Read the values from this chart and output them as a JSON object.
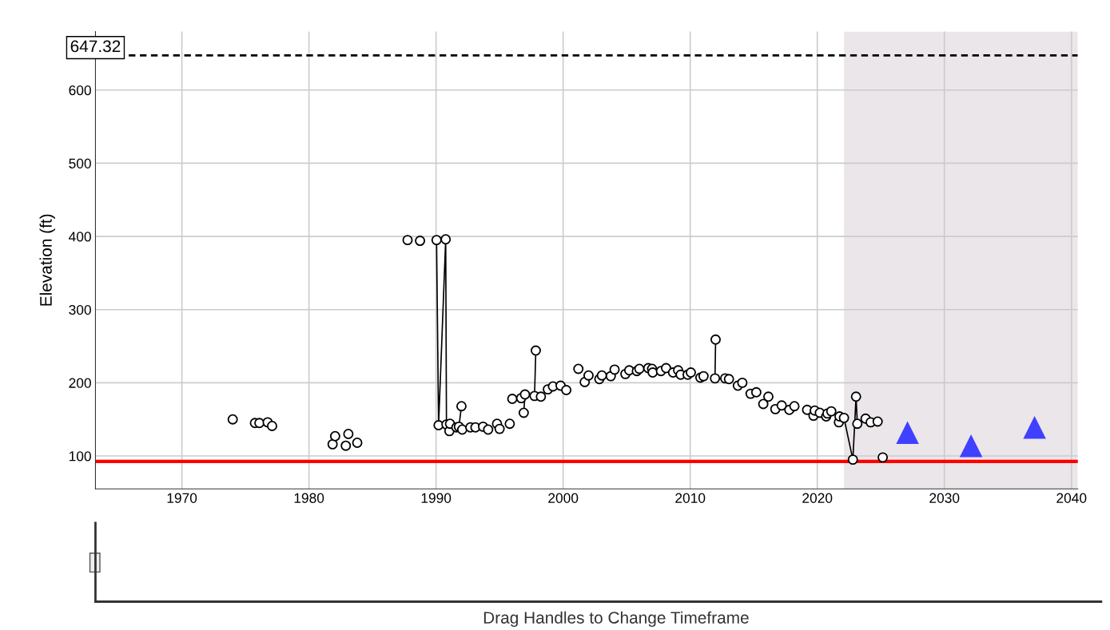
{
  "chart_data": {
    "type": "line",
    "ylabel": "Elevation (ft)",
    "xlim": [
      1963.2,
      2040.5
    ],
    "xticks": [
      1970,
      1980,
      1990,
      2000,
      2010,
      2020,
      2030,
      2040
    ],
    "ylim": [
      55,
      680
    ],
    "yticks": [
      100,
      200,
      300,
      400,
      500,
      600
    ],
    "grid": true,
    "series": [
      {
        "color": "#000000",
        "marker": "circle",
        "x": [
          1974.0,
          null,
          1975.75,
          null,
          1976.1,
          null,
          1976.75,
          null,
          1977.1,
          null,
          1981.86,
          null,
          1982.06,
          null,
          1982.9,
          null,
          1983.1,
          null,
          1983.8,
          null,
          1987.76,
          null,
          1988.74,
          null,
          1990.04,
          1990.2,
          1990.76,
          1990.82,
          null,
          1991.05,
          null,
          1991.1,
          null,
          1991.6,
          null,
          1991.8,
          1992.0,
          null,
          1992.06,
          null,
          1992.7,
          null,
          1993.1,
          null,
          1993.7,
          null,
          1994.1,
          null,
          1994.8,
          null,
          1995.0,
          null,
          1995.8,
          null,
          1996.0,
          null,
          1996.7,
          null,
          1996.9,
          1997.0,
          null,
          1997.75,
          1997.85,
          null,
          1998.25,
          null,
          1998.8,
          null,
          1999.2,
          null,
          1999.8,
          null,
          2000.25,
          null,
          2001.2,
          null,
          2001.7,
          null,
          2002.0,
          null,
          2002.85,
          null,
          2003.05,
          null,
          2003.75,
          null,
          2004.05,
          null,
          2004.9,
          null,
          2005.2,
          null,
          2005.8,
          null,
          2006.0,
          null,
          2006.7,
          null,
          2007.0,
          null,
          2007.05,
          null,
          2007.7,
          null,
          2008.1,
          null,
          2008.65,
          null,
          2009.05,
          null,
          2009.25,
          null,
          2009.8,
          null,
          2010.05,
          null,
          2010.8,
          null,
          2011.05,
          null,
          2011.95,
          2012.0,
          null,
          2012.75,
          null,
          2013.05,
          null,
          2013.75,
          null,
          2014.1,
          null,
          2014.75,
          null,
          2015.2,
          null,
          2015.75,
          null,
          2016.15,
          null,
          2016.7,
          null,
          2017.2,
          null,
          2017.8,
          null,
          2018.2,
          null,
          2019.2,
          null,
          2019.7,
          null,
          2019.8,
          null,
          2020.2,
          null,
          2020.7,
          null,
          2020.8,
          null,
          2021.1,
          null,
          2021.7,
          null,
          2021.75,
          null,
          2022.1,
          2022.8,
          2023.05,
          2023.15,
          null,
          2023.8,
          null,
          2024.2,
          null,
          2024.75,
          null,
          2025.15
        ],
        "values": [
          150,
          null,
          145,
          null,
          145,
          null,
          146,
          null,
          141,
          null,
          116,
          null,
          127,
          null,
          114,
          null,
          130,
          null,
          118,
          null,
          395,
          null,
          394,
          null,
          395,
          142,
          396,
          143,
          null,
          134,
          null,
          144,
          null,
          139,
          null,
          140,
          168,
          null,
          136,
          null,
          139,
          null,
          139,
          null,
          140,
          null,
          136,
          null,
          144,
          null,
          137,
          null,
          144,
          null,
          178,
          null,
          179,
          null,
          159,
          184,
          null,
          182,
          244,
          null,
          181,
          null,
          191,
          null,
          195,
          null,
          196,
          null,
          190,
          null,
          219,
          null,
          201,
          null,
          210,
          null,
          205,
          null,
          210,
          null,
          209,
          null,
          218,
          null,
          212,
          null,
          217,
          null,
          216,
          null,
          219,
          null,
          220,
          null,
          219,
          null,
          214,
          null,
          216,
          null,
          220,
          null,
          214,
          null,
          217,
          null,
          211,
          null,
          211,
          null,
          214,
          null,
          207,
          null,
          209,
          null,
          206,
          259,
          null,
          206,
          null,
          205,
          null,
          196,
          null,
          200,
          null,
          185,
          null,
          187,
          null,
          171,
          null,
          181,
          null,
          164,
          null,
          169,
          null,
          163,
          null,
          168,
          null,
          163,
          null,
          155,
          null,
          162,
          null,
          159,
          null,
          154,
          null,
          158,
          null,
          161,
          null,
          146,
          null,
          154,
          null,
          152,
          95,
          181,
          144,
          null,
          151,
          null,
          146,
          null,
          147,
          null,
          98
        ]
      },
      {
        "type": "scatter",
        "color": "#4040ff",
        "marker": "triangle",
        "x": [
          2027.1,
          2032.1,
          2037.1
        ],
        "values": [
          132,
          114,
          139
        ]
      }
    ],
    "ref_lines": [
      {
        "axis": "y",
        "value": 647.32,
        "label": "647.32",
        "color": "#000000",
        "line_style": "dashed"
      },
      {
        "axis": "y",
        "value": 92.5,
        "label": null,
        "color": "#ff0000",
        "line_style": "solid"
      }
    ],
    "bands": [
      {
        "axis": "x",
        "from": 2022.1,
        "to": 2040.5,
        "label": null,
        "color": "#ebe6ea"
      }
    ],
    "annotations": [
      "Drag Handles to Change Timeframe"
    ]
  }
}
